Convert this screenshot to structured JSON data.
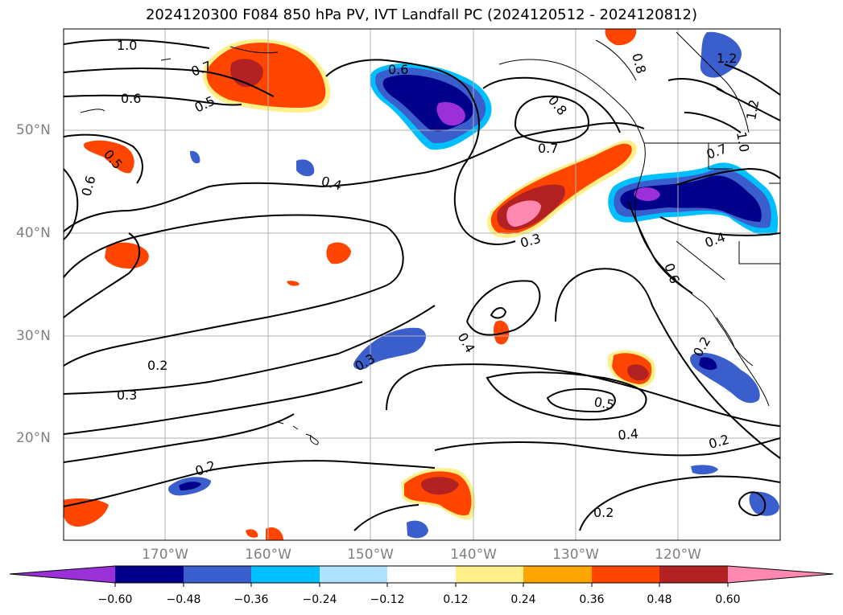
{
  "title": "2024120300 F084 850 hPa PV, IVT Landfall PC (2024120512 - 2024120812)",
  "lat_labels": [
    "50°N",
    "40°N",
    "30°N",
    "20°N"
  ],
  "lon_labels": [
    "170°W",
    "160°W",
    "150°W",
    "140°W",
    "130°W",
    "120°W"
  ],
  "colorbar": {
    "ticks": [
      "−0.60",
      "−0.48",
      "−0.36",
      "−0.24",
      "−0.12",
      "0.12",
      "0.24",
      "0.36",
      "0.48",
      "0.60"
    ],
    "colors": [
      "#9b30d9",
      "#00008b",
      "#3a5fcd",
      "#00bfff",
      "#b0e2ff",
      "#ffffff",
      "#fff08a",
      "#ffa500",
      "#ff4500",
      "#b22222",
      "#ff88b0"
    ]
  },
  "contour_labels": [
    "1.0",
    "0.7",
    "0.6",
    "0.5",
    "0.5",
    "0.6",
    "0.4",
    "0.6",
    "0.8",
    "0.8",
    "0.7",
    "0.7",
    "0.3",
    "0.4",
    "0.6",
    "0.4",
    "0.3",
    "0.2",
    "0.3",
    "0.5",
    "0.4",
    "0.2",
    "0.2",
    "0.2",
    "1.2",
    "1.2",
    "1.0",
    "0.2"
  ],
  "colors": {
    "axis_text": "#808080",
    "contour": "#000000",
    "grid": "#b0b0b0"
  }
}
